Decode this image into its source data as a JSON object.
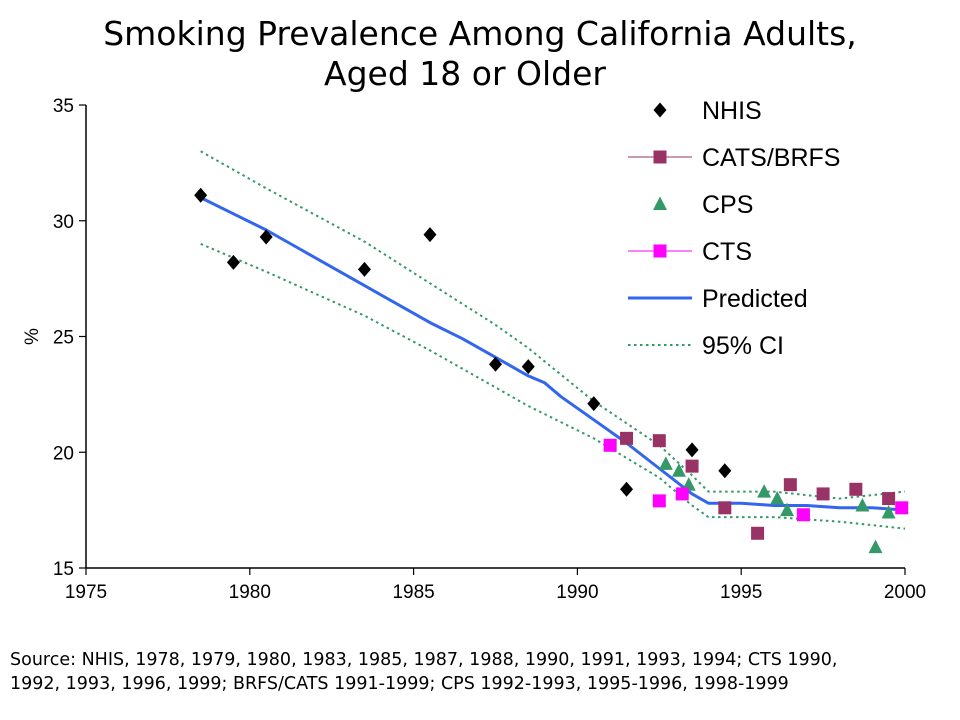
{
  "title": {
    "line1": "Smoking Prevalence Among California Adults,",
    "line2": "Aged 18 or Older"
  },
  "source": {
    "line1": "Source: NHIS, 1978, 1979, 1980, 1983, 1985, 1987, 1988, 1990, 1991, 1993, 1994; CTS 1990,",
    "line2": "1992, 1993, 1996, 1999; BRFS/CATS 1991-1999; CPS 1992-1993, 1995-1996, 1998-1999"
  },
  "chart_data": {
    "type": "scatter",
    "title": "Smoking Prevalence Among California Adults, Aged 18 or Older",
    "xlabel": "",
    "ylabel": "%",
    "xlim": [
      1975,
      2000
    ],
    "ylim": [
      15,
      35
    ],
    "xticks": [
      1975,
      1980,
      1985,
      1990,
      1995,
      2000
    ],
    "yticks": [
      15,
      20,
      25,
      30,
      35
    ],
    "grid": false,
    "legend": "top-right",
    "series": [
      {
        "name": "NHIS",
        "kind": "points",
        "marker": "diamond",
        "color": "#000000",
        "points": [
          [
            1978.5,
            31.1
          ],
          [
            1979.5,
            28.2
          ],
          [
            1980.5,
            29.3
          ],
          [
            1983.5,
            27.9
          ],
          [
            1985.5,
            29.4
          ],
          [
            1987.5,
            23.8
          ],
          [
            1988.5,
            23.7
          ],
          [
            1990.5,
            22.1
          ],
          [
            1991.5,
            18.4
          ],
          [
            1993.5,
            20.1
          ],
          [
            1994.5,
            19.2
          ]
        ]
      },
      {
        "name": "CATS/BRFS",
        "kind": "points",
        "marker": "square",
        "color": "#993366",
        "points": [
          [
            1991.5,
            20.6
          ],
          [
            1992.5,
            20.5
          ],
          [
            1993.5,
            19.4
          ],
          [
            1994.5,
            17.6
          ],
          [
            1995.5,
            16.5
          ],
          [
            1996.5,
            18.6
          ],
          [
            1997.5,
            18.2
          ],
          [
            1998.5,
            18.4
          ],
          [
            1999.5,
            18.0
          ]
        ]
      },
      {
        "name": "CPS",
        "kind": "points",
        "marker": "triangle",
        "color": "#339966",
        "points": [
          [
            1992.7,
            19.5
          ],
          [
            1993.1,
            19.2
          ],
          [
            1993.4,
            18.6
          ],
          [
            1995.7,
            18.3
          ],
          [
            1996.1,
            18.0
          ],
          [
            1996.4,
            17.5
          ],
          [
            1998.7,
            17.7
          ],
          [
            1999.1,
            15.9
          ],
          [
            1999.5,
            17.4
          ]
        ]
      },
      {
        "name": "CTS",
        "kind": "points",
        "marker": "square",
        "color": "#ff00ff",
        "points": [
          [
            1991.0,
            20.3
          ],
          [
            1992.5,
            17.9
          ],
          [
            1993.2,
            18.2
          ],
          [
            1996.9,
            17.3
          ],
          [
            1999.9,
            17.6
          ]
        ]
      },
      {
        "name": "Predicted",
        "kind": "line",
        "style": "solid",
        "color": "#3366ee",
        "points": [
          [
            1978.5,
            31.0
          ],
          [
            1979.5,
            30.3
          ],
          [
            1980.5,
            29.6
          ],
          [
            1981.5,
            28.8
          ],
          [
            1982.5,
            28.0
          ],
          [
            1983.5,
            27.2
          ],
          [
            1984.5,
            26.4
          ],
          [
            1985.5,
            25.6
          ],
          [
            1986.5,
            24.9
          ],
          [
            1987.5,
            24.1
          ],
          [
            1988.5,
            23.3
          ],
          [
            1989.0,
            23.0
          ],
          [
            1989.5,
            22.4
          ],
          [
            1990.5,
            21.4
          ],
          [
            1991.5,
            20.4
          ],
          [
            1992.5,
            19.3
          ],
          [
            1993.5,
            18.2
          ],
          [
            1994.0,
            17.8
          ],
          [
            1995.0,
            17.8
          ],
          [
            1996.0,
            17.7
          ],
          [
            1997.0,
            17.7
          ],
          [
            1998.0,
            17.6
          ],
          [
            1999.0,
            17.6
          ],
          [
            2000.0,
            17.5
          ]
        ]
      },
      {
        "name": "95% CI",
        "kind": "line",
        "style": "dotted",
        "color": "#339966",
        "points": [
          [
            1978.5,
            33.0
          ],
          [
            1980.5,
            31.4
          ],
          [
            1983.5,
            29.1
          ],
          [
            1985.5,
            27.3
          ],
          [
            1987.5,
            25.5
          ],
          [
            1988.5,
            24.5
          ],
          [
            1990.5,
            22.2
          ],
          [
            1992.5,
            20.3
          ],
          [
            1993.5,
            19.0
          ],
          [
            1994.0,
            18.3
          ],
          [
            1996.0,
            18.3
          ],
          [
            1998.0,
            18.0
          ],
          [
            2000.0,
            18.3
          ]
        ]
      },
      {
        "name": "",
        "legend": false,
        "kind": "line",
        "style": "dotted",
        "color": "#339966",
        "points": [
          [
            1978.5,
            29.0
          ],
          [
            1980.5,
            27.8
          ],
          [
            1983.5,
            25.9
          ],
          [
            1985.5,
            24.4
          ],
          [
            1987.5,
            22.8
          ],
          [
            1988.5,
            22.0
          ],
          [
            1990.5,
            20.6
          ],
          [
            1992.5,
            18.9
          ],
          [
            1993.5,
            17.7
          ],
          [
            1994.0,
            17.2
          ],
          [
            1996.0,
            17.2
          ],
          [
            1998.0,
            17.0
          ],
          [
            2000.0,
            16.7
          ]
        ]
      }
    ]
  }
}
